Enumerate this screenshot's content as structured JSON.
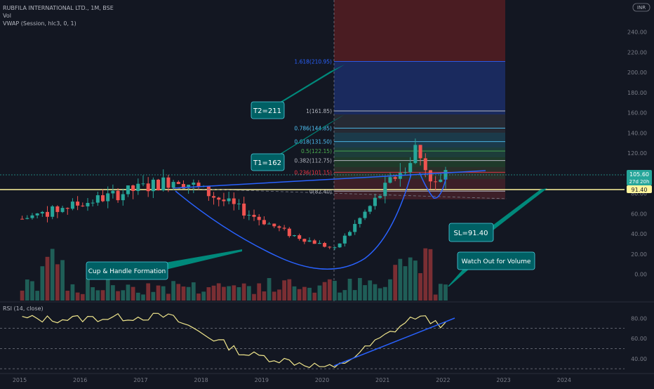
{
  "header": {
    "symbol_line": "RUBFILA INTERNATIONAL LTD., 1M, BSE",
    "vol_label": "Vol",
    "vwap_label": "VWAP (Session, hlc3, 0, 1)",
    "rsi_label": "RSI (14, close)",
    "currency_badge": "INR"
  },
  "price_badges": {
    "last_price": "105.60",
    "countdown": "27d 20h",
    "sl_line_value": "91.40"
  },
  "annotations": {
    "t2": "T2=211",
    "t1": "T1=162",
    "sl": "SL=91.40",
    "cup": "Cup & Handle Formation",
    "volume": "Watch Out for Volume"
  },
  "fib_levels": [
    {
      "label": "1.618(210.95)",
      "price": 210.95,
      "color": "#2962ff"
    },
    {
      "label": "1(161.85)",
      "price": 161.85,
      "color": "#b2b5be"
    },
    {
      "label": "0.786(144.85)",
      "price": 144.85,
      "color": "#4fc3f7"
    },
    {
      "label": "0.618(131.50)",
      "price": 131.5,
      "color": "#4fc3f7"
    },
    {
      "label": "0.5(122.15)",
      "price": 122.15,
      "color": "#4caf50"
    },
    {
      "label": "0.382(112.75)",
      "price": 112.75,
      "color": "#b2b5be"
    },
    {
      "label": "0.236(101.15)",
      "price": 101.15,
      "color": "#f23645"
    },
    {
      "label": "0(82.40)",
      "price": 82.4,
      "color": "#b2b5be"
    }
  ],
  "chart_data": [
    {
      "type": "candlestick",
      "title": "RUBFILA INTERNATIONAL LTD., 1M, BSE",
      "y_axis_ticks": [
        0,
        20,
        40,
        60,
        80,
        100,
        120,
        140,
        160,
        180,
        200,
        220,
        240
      ],
      "ylim": [
        -12,
        262
      ],
      "x_axis_ticks": [
        "2015",
        "2016",
        "2017",
        "2018",
        "2019",
        "2020",
        "2021",
        "2022",
        "2023",
        "2024"
      ],
      "horizontal_line": 91.4,
      "key_points": [
        {
          "date": "2015-01",
          "price": 55
        },
        {
          "date": "2017-08",
          "price": 95
        },
        {
          "date": "2019-06",
          "price": 40
        },
        {
          "date": "2020-03",
          "price": 25
        },
        {
          "date": "2021-06",
          "price": 115
        },
        {
          "date": "2021-07",
          "price": 125
        },
        {
          "date": "2021-11",
          "price": 88
        },
        {
          "date": "2022-01",
          "price": 105.6
        }
      ],
      "volume_note": "volume bars peak around 2015-07 and 2021-06"
    },
    {
      "type": "line",
      "title": "RSI (14, close)",
      "y_axis_ticks": [
        40,
        60,
        80
      ],
      "ylim": [
        28,
        92
      ],
      "reference_lines": [
        30,
        50,
        70
      ],
      "key_points": [
        {
          "date": "2015-01",
          "value": 80
        },
        {
          "date": "2015-07",
          "value": 79
        },
        {
          "date": "2017-06",
          "value": 82
        },
        {
          "date": "2018-09",
          "value": 45
        },
        {
          "date": "2020-03",
          "value": 30
        },
        {
          "date": "2021-07",
          "value": 82
        },
        {
          "date": "2022-01",
          "value": 73
        }
      ]
    }
  ]
}
